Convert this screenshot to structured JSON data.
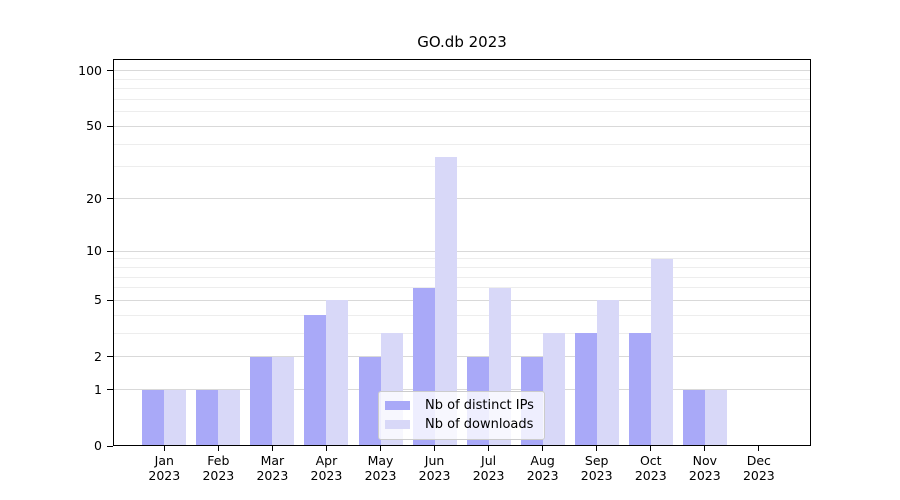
{
  "figure": {
    "title": "GO.db 2023"
  },
  "chart_data": {
    "type": "bar",
    "title": "GO.db 2023",
    "xlabel": "",
    "ylabel": "",
    "x_categories": [
      {
        "month": "Jan",
        "year": "2023"
      },
      {
        "month": "Feb",
        "year": "2023"
      },
      {
        "month": "Mar",
        "year": "2023"
      },
      {
        "month": "Apr",
        "year": "2023"
      },
      {
        "month": "May",
        "year": "2023"
      },
      {
        "month": "Jun",
        "year": "2023"
      },
      {
        "month": "Jul",
        "year": "2023"
      },
      {
        "month": "Aug",
        "year": "2023"
      },
      {
        "month": "Sep",
        "year": "2023"
      },
      {
        "month": "Oct",
        "year": "2023"
      },
      {
        "month": "Nov",
        "year": "2023"
      },
      {
        "month": "Dec",
        "year": "2023"
      }
    ],
    "series": [
      {
        "name": "Nb of distinct IPs",
        "color": "#a9a9f8",
        "values": [
          1,
          1,
          2,
          4,
          2,
          6,
          2,
          2,
          3,
          3,
          1,
          0
        ]
      },
      {
        "name": "Nb of downloads",
        "color": "#d8d8f8",
        "values": [
          1,
          1,
          2,
          5,
          3,
          34,
          6,
          3,
          5,
          9,
          1,
          0
        ]
      }
    ],
    "yscale": "log1p",
    "ylim": [
      0,
      116
    ],
    "yticks": [
      0,
      1,
      2,
      5,
      10,
      20,
      50,
      100
    ],
    "yticks_minor": [
      3,
      4,
      6,
      7,
      8,
      9,
      30,
      40,
      60,
      70,
      80,
      90
    ],
    "grid": true,
    "legend_position": "lower center",
    "colors": {
      "major_gridline": "#d9d9d9",
      "minor_gridline": "#ededed",
      "spine": "#000000",
      "legend_border": "#cccccc",
      "legend_background": "rgba(255,255,255,0.8)",
      "text": "#000000"
    }
  }
}
